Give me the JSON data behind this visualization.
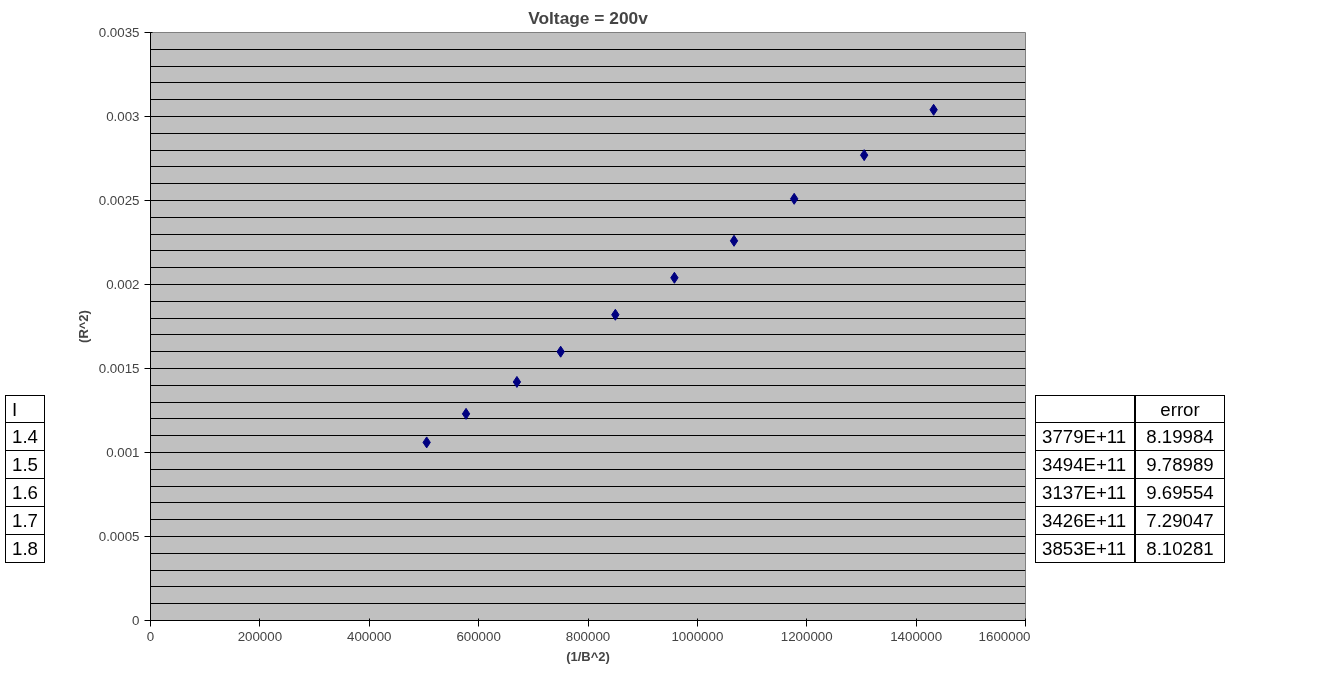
{
  "chart_data": {
    "type": "scatter",
    "title": "Voltage = 200v",
    "xlabel": "(1/B^2)",
    "ylabel": "(R^2)",
    "x": [
      505000,
      577000,
      670000,
      750000,
      850000,
      958000,
      1067000,
      1177000,
      1305000,
      1432000
    ],
    "series": [
      {
        "color": "#000080",
        "values": [
          0.00106,
          0.00123,
          0.00142,
          0.0016,
          0.00182,
          0.00204,
          0.00226,
          0.00251,
          0.00277,
          0.00304
        ]
      }
    ],
    "xlim": [
      0,
      1600000
    ],
    "xticks": [
      0,
      200000,
      400000,
      600000,
      800000,
      1000000,
      1200000,
      1400000,
      1600000
    ],
    "ylim": [
      0,
      0.0035
    ],
    "yticks": [
      0,
      0.0005,
      0.001,
      0.0015,
      0.002,
      0.0025,
      0.003,
      0.0035
    ],
    "grid": "y",
    "marker": "diamond",
    "annotations": [
      "I",
      "1.4",
      "1.5",
      "1.6",
      "1.7",
      "1.8",
      "3779E+11",
      "3494E+11",
      "3137E+11",
      "3426E+11",
      "3853E+11",
      "error",
      "8.19984",
      "9.78989",
      "9.69554",
      "7.29047",
      "8.10281"
    ]
  }
}
